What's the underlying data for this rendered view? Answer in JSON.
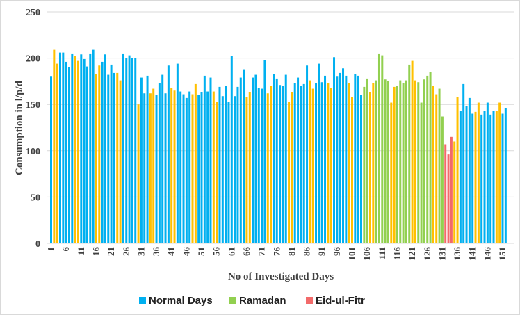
{
  "chart_data": {
    "type": "bar",
    "title": "",
    "xlabel": "No of Investigated Days",
    "ylabel": "Consumption in l/p/d",
    "ylim": [
      0,
      250
    ],
    "yticks": [
      0,
      50,
      100,
      150,
      200,
      250
    ],
    "xtick_step": 5,
    "grid": true,
    "legend_position": "bottom",
    "legend": [
      {
        "key": "N",
        "label": "Normal Days"
      },
      {
        "key": "R",
        "label": "Ramadan"
      },
      {
        "key": "E",
        "label": "Eid-ul-Fitr"
      }
    ],
    "colors": {
      "N": "#00B0F0",
      "O": "#FFC000",
      "R": "#92D050",
      "E": "#F26A6A",
      "grid": "#d9d9d9"
    },
    "values": [
      180,
      209,
      194,
      206,
      206,
      196,
      190,
      205,
      202,
      197,
      204,
      199,
      191,
      205,
      209,
      183,
      192,
      196,
      204,
      182,
      193,
      184,
      184,
      176,
      205,
      200,
      203,
      200,
      200,
      150,
      179,
      162,
      181,
      162,
      167,
      160,
      173,
      182,
      162,
      192,
      168,
      165,
      194,
      164,
      161,
      157,
      164,
      161,
      172,
      160,
      163,
      181,
      164,
      179,
      164,
      153,
      169,
      159,
      170,
      153,
      202,
      159,
      169,
      179,
      188,
      158,
      163,
      179,
      182,
      168,
      167,
      198,
      162,
      170,
      183,
      178,
      171,
      170,
      182,
      153,
      163,
      173,
      179,
      170,
      172,
      192,
      176,
      167,
      173,
      194,
      174,
      181,
      173,
      168,
      201,
      180,
      184,
      189,
      181,
      173,
      158,
      183,
      181,
      160,
      169,
      178,
      163,
      173,
      176,
      205,
      203,
      177,
      175,
      152,
      169,
      170,
      176,
      173,
      176,
      193,
      197,
      176,
      174,
      152,
      177,
      181,
      185,
      170,
      161,
      167,
      137,
      107,
      96,
      115,
      110,
      158,
      143,
      172,
      148,
      157,
      140,
      142,
      152,
      139,
      143,
      152,
      139,
      143,
      143,
      152,
      140,
      146
    ],
    "categories": [
      "N",
      "O",
      "O",
      "N",
      "N",
      "N",
      "N",
      "N",
      "O",
      "O",
      "N",
      "N",
      "N",
      "N",
      "N",
      "O",
      "O",
      "N",
      "N",
      "N",
      "N",
      "N",
      "O",
      "O",
      "N",
      "N",
      "N",
      "N",
      "N",
      "O",
      "N",
      "N",
      "N",
      "O",
      "O",
      "N",
      "N",
      "N",
      "N",
      "N",
      "O",
      "O",
      "N",
      "N",
      "N",
      "N",
      "N",
      "O",
      "O",
      "N",
      "N",
      "N",
      "N",
      "N",
      "O",
      "O",
      "N",
      "N",
      "N",
      "N",
      "N",
      "N",
      "N",
      "N",
      "N",
      "O",
      "O",
      "N",
      "N",
      "N",
      "N",
      "N",
      "O",
      "O",
      "N",
      "N",
      "N",
      "N",
      "N",
      "O",
      "O",
      "N",
      "N",
      "N",
      "N",
      "N",
      "O",
      "O",
      "N",
      "N",
      "N",
      "N",
      "O",
      "O",
      "N",
      "N",
      "N",
      "N",
      "N",
      "O",
      "O",
      "N",
      "N",
      "N",
      "R",
      "R",
      "O",
      "O",
      "R",
      "R",
      "R",
      "R",
      "R",
      "O",
      "O",
      "R",
      "R",
      "R",
      "R",
      "R",
      "O",
      "O",
      "R",
      "R",
      "R",
      "R",
      "R",
      "O",
      "O",
      "R",
      "R",
      "E",
      "E",
      "E",
      "O",
      "O",
      "N",
      "N",
      "N",
      "N",
      "N",
      "O",
      "O",
      "N",
      "N",
      "N",
      "N",
      "N",
      "O",
      "O",
      "N",
      "N"
    ]
  }
}
